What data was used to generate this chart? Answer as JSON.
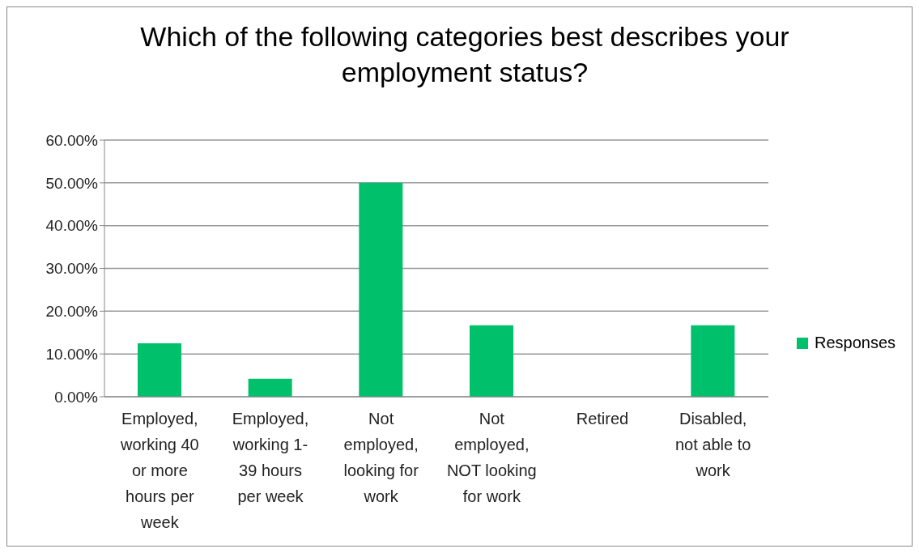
{
  "chart_data": {
    "type": "bar",
    "title": "Which of the following categories best describes your employment status?",
    "categories": [
      "Employed, working 40 or more hours per week",
      "Employed, working 1-39 hours per week",
      "Not employed, looking for work",
      "Not employed, NOT looking for work",
      "Retired",
      "Disabled, not able to work"
    ],
    "series": [
      {
        "name": "Responses",
        "color": "#00c06c",
        "values": [
          12.5,
          4.2,
          50,
          16.7,
          0,
          16.7
        ]
      }
    ],
    "ylim": [
      0,
      60
    ],
    "yticks": [
      {
        "value": 0,
        "label": "0.00%"
      },
      {
        "value": 10,
        "label": "10.00%"
      },
      {
        "value": 20,
        "label": "20.00%"
      },
      {
        "value": 30,
        "label": "30.00%"
      },
      {
        "value": 40,
        "label": "40.00%"
      },
      {
        "value": 50,
        "label": "50.00%"
      },
      {
        "value": 60,
        "label": "60.00%"
      }
    ],
    "grid": "y",
    "legend": "right"
  }
}
